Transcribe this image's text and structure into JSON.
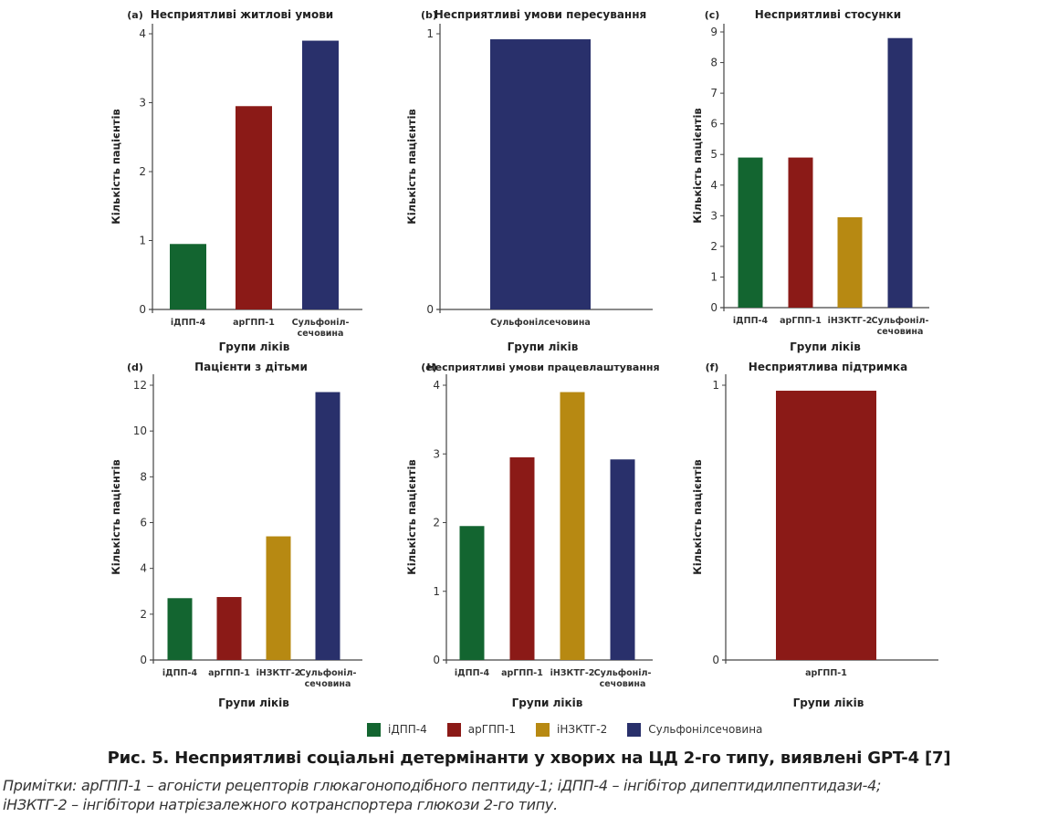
{
  "colors": {
    "iDPP4": "#136530",
    "arGPP1": "#8b1a17",
    "iNZKTG2": "#b78912",
    "sulfonyl": "#29306b",
    "axis": "#444444"
  },
  "chart_data": [
    {
      "id": "a",
      "panel_label": "(a)",
      "type": "bar",
      "title": "Несприятливі житлові умови",
      "xlabel": "Групи ліків",
      "ylabel": "Кількість пацієнтів",
      "categories": [
        "іДПП-4",
        "арГПП-1",
        "Сульфоніл-\nсечовина"
      ],
      "series_keys": [
        "iDPP4",
        "arGPP1",
        "sulfonyl"
      ],
      "values": [
        0.95,
        2.95,
        3.9
      ],
      "ylim": [
        0,
        4
      ],
      "yticks": [
        0,
        1,
        2,
        3,
        4
      ]
    },
    {
      "id": "b",
      "panel_label": "(b)",
      "type": "bar",
      "title": "Несприятливі умови пересування",
      "xlabel": "Групи ліків",
      "ylabel": "Кількість пацієнтів",
      "categories": [
        "Сульфонілсечовина"
      ],
      "series_keys": [
        "sulfonyl"
      ],
      "values": [
        0.98
      ],
      "ylim": [
        0,
        1
      ],
      "yticks": [
        0,
        1
      ]
    },
    {
      "id": "c",
      "panel_label": "(c)",
      "type": "bar",
      "title": "Несприятливі стосунки",
      "xlabel": "Групи ліків",
      "ylabel": "Кількість пацієнтів",
      "categories": [
        "іДПП-4",
        "арГПП-1",
        "іНЗКТГ-2",
        "Сульфоніл-\nсечовина"
      ],
      "series_keys": [
        "iDPP4",
        "arGPP1",
        "iNZKTG2",
        "sulfonyl"
      ],
      "values": [
        4.9,
        4.9,
        2.95,
        8.8
      ],
      "ylim": [
        0,
        9
      ],
      "yticks": [
        0,
        1,
        2,
        3,
        4,
        5,
        6,
        7,
        8,
        9
      ]
    },
    {
      "id": "d",
      "panel_label": "(d)",
      "type": "bar",
      "title": "Пацієнти з дітьми",
      "xlabel": "Групи ліків",
      "ylabel": "Кількість пацієнтів",
      "categories": [
        "іДПП-4",
        "арГПП-1",
        "іНЗКТГ-2",
        "Сульфоніл-\nсечовина"
      ],
      "series_keys": [
        "iDPP4",
        "arGPP1",
        "iNZKTG2",
        "sulfonyl"
      ],
      "values": [
        2.7,
        2.75,
        5.4,
        11.7
      ],
      "ylim": [
        0,
        12
      ],
      "yticks": [
        0,
        2,
        4,
        6,
        8,
        10,
        12
      ]
    },
    {
      "id": "e",
      "panel_label": "(e)",
      "type": "bar",
      "title": "Несприятливі умови працевлаштування",
      "xlabel": "Групи ліків",
      "ylabel": "Кількість пацієнтів",
      "categories": [
        "іДПП-4",
        "арГПП-1",
        "іНЗКТГ-2",
        "Сульфоніл-\nсечовина"
      ],
      "series_keys": [
        "iDPP4",
        "arGPP1",
        "iNZKTG2",
        "sulfonyl"
      ],
      "values": [
        1.95,
        2.95,
        3.9,
        2.92
      ],
      "ylim": [
        0,
        4
      ],
      "yticks": [
        0,
        1,
        2,
        3,
        4
      ]
    },
    {
      "id": "f",
      "panel_label": "(f)",
      "type": "bar",
      "title": "Несприятлива підтримка",
      "xlabel": "Групи ліків",
      "ylabel": "Кількість пацієнтів",
      "categories": [
        "арГПП-1"
      ],
      "series_keys": [
        "arGPP1"
      ],
      "values": [
        0.98
      ],
      "ylim": [
        0,
        1
      ],
      "yticks": [
        0,
        1
      ]
    }
  ],
  "legend": [
    {
      "key": "iDPP4",
      "label": "іДПП-4"
    },
    {
      "key": "arGPP1",
      "label": "арГПП-1"
    },
    {
      "key": "iNZKTG2",
      "label": "іНЗКТГ-2"
    },
    {
      "key": "sulfonyl",
      "label": "Сульфонілсечовина"
    }
  ],
  "caption": "Рис. 5. Несприятливі соціальні детермінанти у хворих на ЦД 2-го типу, виявлені GPT-4 [7]",
  "notes": [
    "Примітки: арГПП-1 – агоністи рецепторів глюкагоноподібного пептиду-1; іДПП-4 – інгібітор дипептидилпептидази-4;",
    "іНЗКТГ-2 – інгібітори натрієзалежного котранспортера глюкози 2-го типу."
  ]
}
